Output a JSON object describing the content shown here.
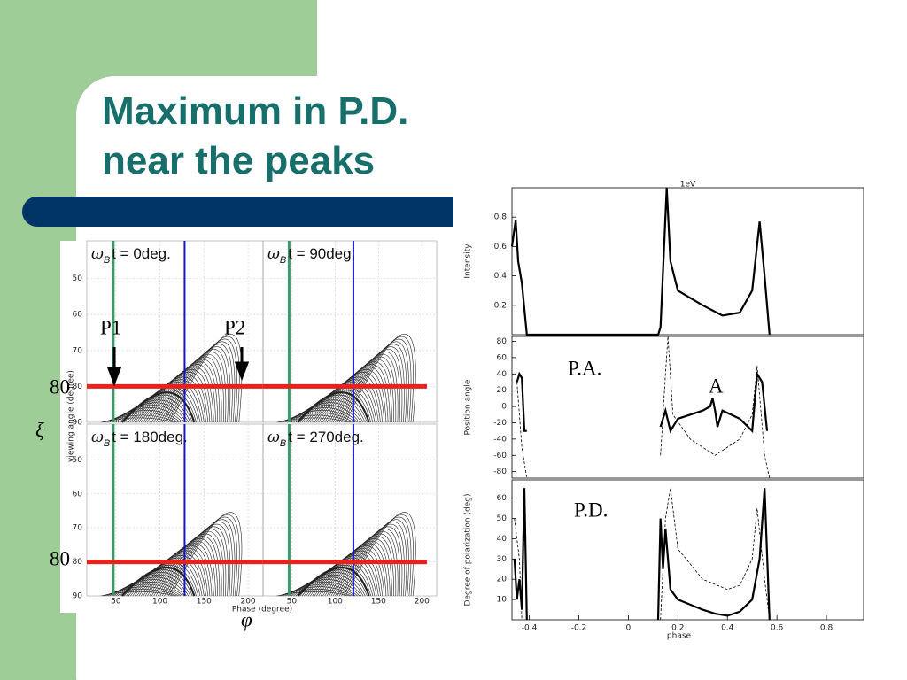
{
  "title_lines": [
    "Maximum in P.D.",
    "near the peaks"
  ],
  "left_figure": {
    "xlabel": "Phase (degree)",
    "ylabel": "viewing angle (degree)",
    "xlim": [
      17,
      217
    ],
    "ylim": [
      39.5,
      90
    ],
    "y_inverted": true,
    "xticks": [
      50,
      100,
      150,
      200
    ],
    "yticks": [
      50,
      60,
      70,
      80,
      90
    ],
    "grid": true,
    "red_line_y": 80,
    "green_line_x": 47,
    "colors": {
      "red": "#e8211c",
      "green": "#3a9a6a",
      "blue": "#1414c8",
      "curves": "#222222"
    },
    "panels": [
      {
        "symbol": "ω",
        "subscript": "B",
        "text": "t = 0deg.",
        "blue_line_x": 128
      },
      {
        "symbol": "ω",
        "subscript": "B",
        "text": "t = 90deg.",
        "blue_line_x": 121
      },
      {
        "symbol": "ω",
        "subscript": "B",
        "text": "t = 180deg.",
        "blue_line_x": 128
      },
      {
        "symbol": "ω",
        "subscript": "B",
        "text": "t = 270deg.",
        "blue_line_x": 121
      }
    ]
  },
  "annotations": {
    "p1": "P1",
    "p2": "P2",
    "eighty_top": "80",
    "eighty_bottom": "80",
    "xi": "ξ",
    "phi": "φ",
    "pa": "P.A.",
    "a": "A",
    "pd": "P.D."
  },
  "chart_data": [
    {
      "type": "line",
      "title": "1eV",
      "ylabel": "Intensity",
      "xlim": [
        -0.47,
        0.95
      ],
      "ylim": [
        0,
        1
      ],
      "yticks": [
        0.2,
        0.4,
        0.6,
        0.8
      ],
      "series": [
        {
          "color": "#000000",
          "style": "solid",
          "x": [
            -0.47,
            -0.455,
            -0.445,
            -0.43,
            -0.41,
            0.12,
            0.13,
            0.155,
            0.17,
            0.2,
            0.3,
            0.38,
            0.45,
            0.5,
            0.53,
            0.55,
            0.57
          ],
          "values": [
            0.6,
            0.78,
            0.5,
            0.35,
            0,
            0,
            0.05,
            1.0,
            0.5,
            0.3,
            0.2,
            0.13,
            0.15,
            0.3,
            0.77,
            0.4,
            0
          ]
        }
      ]
    },
    {
      "type": "line",
      "ylabel": "Position angle",
      "xlim": [
        -0.47,
        0.95
      ],
      "ylim": [
        -88,
        86
      ],
      "yticks": [
        -80,
        -60,
        -40,
        -20,
        0,
        20,
        40,
        60,
        80
      ],
      "series": [
        {
          "color": "#000000",
          "style": "solid",
          "x": [
            -0.45,
            -0.44,
            -0.43,
            -0.42,
            -0.41,
            null,
            0.13,
            0.15,
            0.17,
            0.2,
            0.3,
            0.33,
            0.34,
            0.35,
            0.36,
            0.38,
            0.45,
            0.5,
            0.52,
            0.54,
            0.56
          ],
          "values": [
            30,
            40,
            35,
            -30,
            -30,
            null,
            -25,
            -5,
            -30,
            -15,
            -5,
            0,
            10,
            -5,
            -25,
            -5,
            -15,
            -30,
            40,
            30,
            -30
          ]
        },
        {
          "color": "#000000",
          "style": "dashed",
          "x": [
            -0.45,
            -0.43,
            -0.41,
            null,
            0.13,
            0.15,
            0.16,
            0.18,
            0.25,
            0.35,
            0.45,
            0.5,
            0.52,
            0.55,
            0.57
          ],
          "values": [
            30,
            -50,
            -88,
            null,
            -60,
            40,
            86,
            -10,
            -40,
            -60,
            -40,
            -10,
            50,
            -60,
            -88
          ]
        }
      ]
    },
    {
      "type": "line",
      "ylabel": "Degree of polarization (deg)",
      "xlabel": "phase",
      "xlim": [
        -0.47,
        0.95
      ],
      "ylim": [
        0,
        69
      ],
      "yticks": [
        10,
        20,
        30,
        40,
        50,
        60
      ],
      "xticks": [
        -0.4,
        -0.2,
        0,
        0.2,
        0.4,
        0.6,
        0.8
      ],
      "series": [
        {
          "color": "#000000",
          "style": "solid",
          "x": [
            -0.46,
            -0.45,
            -0.44,
            -0.43,
            -0.42,
            -0.41,
            null,
            0.12,
            0.13,
            0.14,
            0.15,
            0.16,
            0.17,
            0.2,
            0.3,
            0.35,
            0.4,
            0.45,
            0.5,
            0.53,
            0.55,
            0.57
          ],
          "values": [
            30,
            10,
            20,
            5,
            65,
            0,
            null,
            0,
            50,
            25,
            45,
            30,
            15,
            10,
            5,
            3,
            2,
            4,
            10,
            30,
            65,
            0
          ]
        },
        {
          "color": "#000000",
          "style": "dashed",
          "x": [
            -0.46,
            -0.44,
            -0.43,
            null,
            0.13,
            0.15,
            0.17,
            0.2,
            0.3,
            0.4,
            0.45,
            0.5,
            0.52,
            0.55,
            0.57
          ],
          "values": [
            50,
            30,
            0,
            null,
            0,
            50,
            65,
            35,
            20,
            15,
            17,
            30,
            55,
            20,
            0
          ]
        }
      ]
    }
  ]
}
